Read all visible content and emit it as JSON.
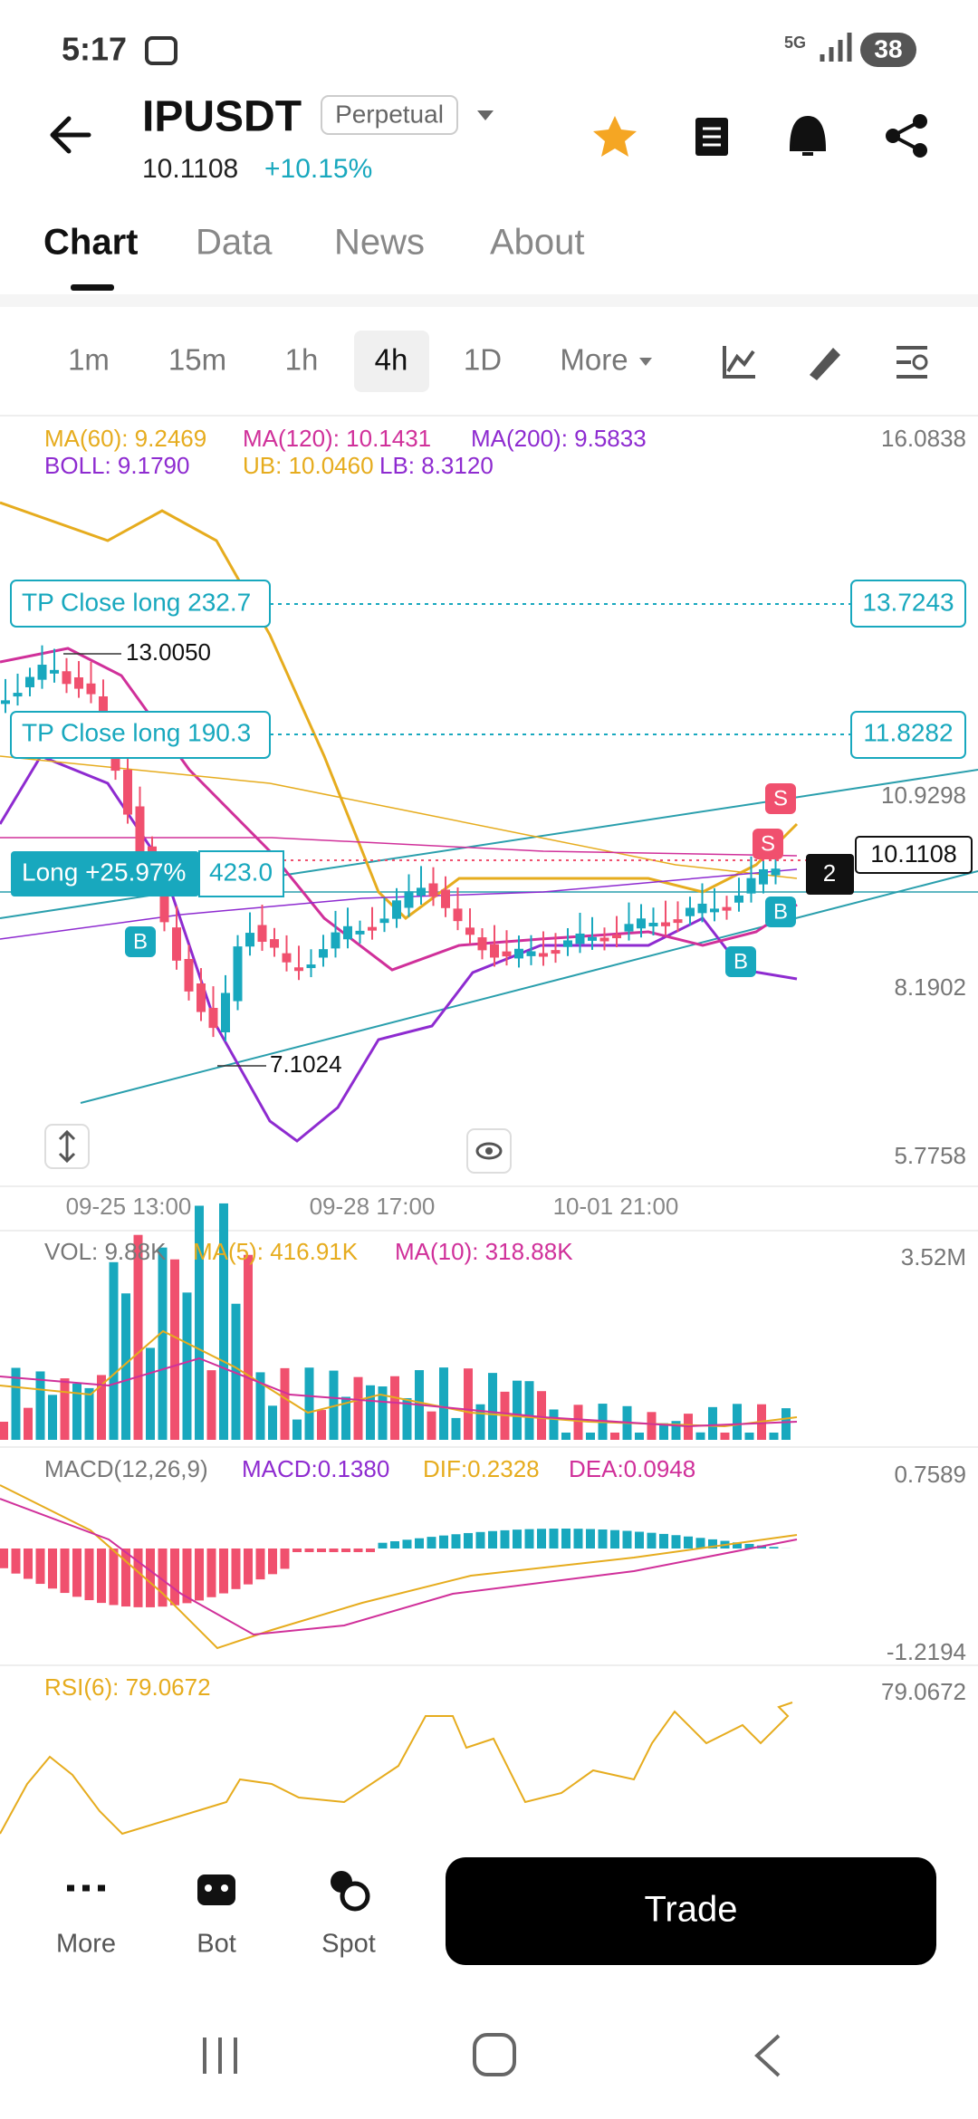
{
  "status_bar": {
    "time": "5:17",
    "network": "5G",
    "battery": "38"
  },
  "header": {
    "symbol": "IPUSDT",
    "contract_type": "Perpetual",
    "last_price": "10.1108",
    "change": "+10.15%"
  },
  "tabs": [
    "Chart",
    "Data",
    "News",
    "About"
  ],
  "intervals": [
    "1m",
    "15m",
    "1h",
    "4h",
    "1D",
    "More"
  ],
  "price_chart": {
    "ma_legend": [
      "MA(60): 9.2469",
      "MA(120): 10.1431",
      "MA(200): 9.5833"
    ],
    "boll_legend": [
      "BOLL: 9.1790",
      "UB: 10.0460",
      "LB: 8.3120"
    ],
    "axis_labels": [
      "16.0838",
      "10.9298",
      "8.1902",
      "5.7758"
    ],
    "tp_orders": [
      {
        "label": "TP Close long 232.7",
        "price": "13.7243"
      },
      {
        "label": "TP Close long 190.3",
        "price": "11.8282"
      }
    ],
    "position": {
      "label": "Long +25.97%",
      "size": "423.0",
      "count": "2",
      "mark_price": "10.1108"
    },
    "annotations": [
      "13.0050",
      "7.1024"
    ],
    "signals": [
      "S",
      "S",
      "B",
      "B",
      "B"
    ],
    "time_axis": [
      "09-25 13:00",
      "09-28 17:00",
      "10-01 21:00"
    ]
  },
  "volume": {
    "legend": [
      "VOL: 9.88K",
      "MA(5): 416.91K",
      "MA(10): 318.88K"
    ],
    "axis_max": "3.52M"
  },
  "macd": {
    "legend": [
      "MACD(12,26,9)",
      "MACD:0.1380",
      "DIF:0.2328",
      "DEA:0.0948"
    ],
    "axis_max": "0.7589",
    "axis_min": "-1.2194"
  },
  "rsi": {
    "legend": "RSI(6): 79.0672",
    "axis_max": "79.0672"
  },
  "bottom_bar": {
    "actions": [
      "More",
      "Bot",
      "Spot"
    ],
    "trade": "Trade"
  }
}
